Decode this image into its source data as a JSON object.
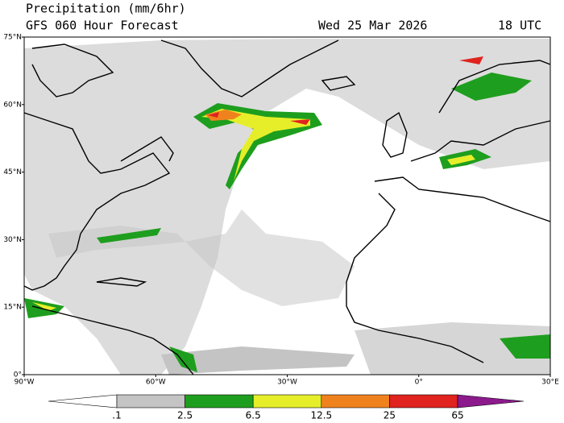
{
  "map": {
    "title": "Precipitation (mm/6hr)",
    "subtitle": "GFS 060 Hour Forecast",
    "date": "Wed 25 Mar 2026",
    "time": "18 UTC",
    "lon_range": [
      -90,
      30
    ],
    "lat_range": [
      0,
      75
    ],
    "lat_ticks": [
      {
        "value": 75,
        "label": "75°N"
      },
      {
        "value": 60,
        "label": "60°N"
      },
      {
        "value": 45,
        "label": "45°N"
      },
      {
        "value": 30,
        "label": "30°N"
      },
      {
        "value": 15,
        "label": "15°N"
      },
      {
        "value": 0,
        "label": "0°"
      }
    ],
    "lon_ticks": [
      {
        "value": -90,
        "label": "90°W"
      },
      {
        "value": -60,
        "label": "60°W"
      },
      {
        "value": -30,
        "label": "30°W"
      },
      {
        "value": 0,
        "label": "0°"
      },
      {
        "value": 30,
        "label": "30°E"
      }
    ],
    "colorbar": {
      "levels": [
        {
          "value": 0.1,
          "label": ".1"
        },
        2.5,
        6.5,
        12.5,
        25,
        65
      ],
      "colors": [
        "#c4c4c4",
        "#1e9e1e",
        "#e6ee2a",
        "#f0821e",
        "#e0231e"
      ],
      "under_color": "#ffffff",
      "over_color": "#8c1a8c"
    }
  }
}
